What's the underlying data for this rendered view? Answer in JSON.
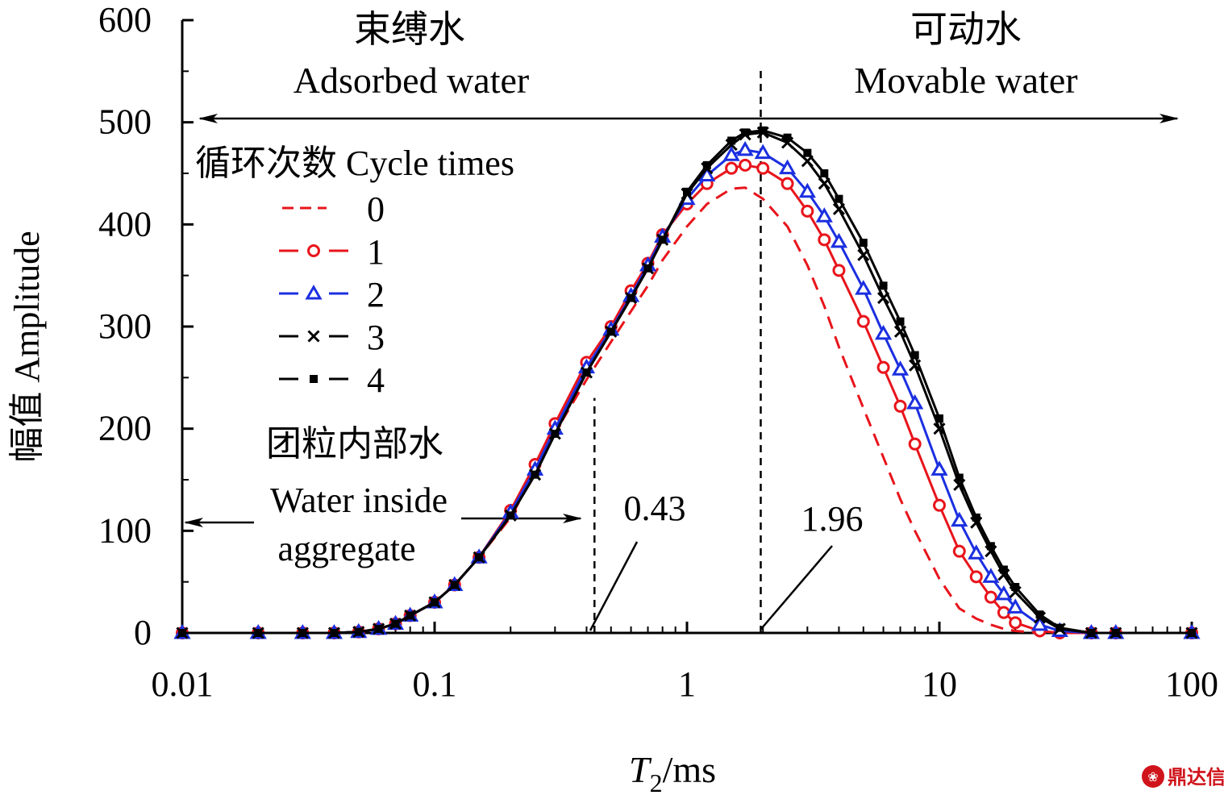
{
  "chart_data": {
    "type": "line",
    "xscale": "log",
    "xlim": [
      0.01,
      100
    ],
    "ylim": [
      0,
      600
    ],
    "xlabel_main": "T",
    "xlabel_sub": "2",
    "xlabel_unit": "/ms",
    "ylabel": "幅值 Amplitude",
    "xticks": [
      "0.01",
      "0.1",
      "1",
      "10",
      "100"
    ],
    "yticks": [
      "0",
      "100",
      "200",
      "300",
      "400",
      "500",
      "600"
    ],
    "legend_title": "循环次数 Cycle times",
    "legend_position": "upper-left",
    "series": [
      {
        "name": "0",
        "color": "#e8141b",
        "marker": "none",
        "dash": true,
        "x": [
          0.01,
          0.02,
          0.03,
          0.04,
          0.05,
          0.06,
          0.07,
          0.08,
          0.1,
          0.12,
          0.15,
          0.2,
          0.25,
          0.3,
          0.4,
          0.5,
          0.6,
          0.7,
          0.8,
          1.0,
          1.2,
          1.5,
          1.7,
          2.0,
          2.5,
          3.0,
          3.5,
          4.0,
          5.0,
          6.0,
          7.0,
          8.0,
          10,
          12,
          14,
          16,
          18,
          20,
          25,
          30,
          40,
          50,
          100
        ],
        "y": [
          0,
          0,
          0,
          0,
          1,
          4,
          9,
          17,
          30,
          47,
          74,
          113,
          157,
          196,
          248,
          285,
          315,
          340,
          365,
          398,
          420,
          435,
          436,
          425,
          398,
          360,
          320,
          280,
          220,
          172,
          131,
          100,
          53,
          24,
          14,
          8,
          4,
          2,
          0,
          0,
          0,
          0,
          0
        ]
      },
      {
        "name": "1",
        "color": "#e8141b",
        "marker": "circle",
        "dash": false,
        "x": [
          0.01,
          0.02,
          0.03,
          0.04,
          0.05,
          0.06,
          0.07,
          0.08,
          0.1,
          0.12,
          0.15,
          0.2,
          0.25,
          0.3,
          0.4,
          0.5,
          0.6,
          0.7,
          0.8,
          1.0,
          1.2,
          1.5,
          1.7,
          2.0,
          2.5,
          3.0,
          3.5,
          4.0,
          5.0,
          6.0,
          7.0,
          8.0,
          10,
          12,
          14,
          16,
          18,
          20,
          25,
          30,
          40,
          50,
          100
        ],
        "y": [
          0,
          0,
          0,
          0,
          1,
          4,
          9,
          17,
          30,
          47,
          74,
          120,
          165,
          205,
          265,
          300,
          335,
          362,
          390,
          420,
          440,
          455,
          458,
          455,
          440,
          413,
          385,
          355,
          305,
          260,
          222,
          185,
          125,
          80,
          55,
          35,
          20,
          10,
          2,
          0,
          0,
          0,
          0
        ]
      },
      {
        "name": "2",
        "color": "#1b2fe0",
        "marker": "triangle",
        "dash": false,
        "x": [
          0.01,
          0.02,
          0.03,
          0.04,
          0.05,
          0.06,
          0.07,
          0.08,
          0.1,
          0.12,
          0.15,
          0.2,
          0.25,
          0.3,
          0.4,
          0.5,
          0.6,
          0.7,
          0.8,
          1.0,
          1.2,
          1.5,
          1.7,
          2.0,
          2.5,
          3.0,
          3.5,
          4.0,
          5.0,
          6.0,
          7.0,
          8.0,
          10,
          12,
          14,
          16,
          18,
          20,
          25,
          30,
          40,
          50,
          100
        ],
        "y": [
          0,
          0,
          0,
          0,
          1,
          4,
          9,
          17,
          30,
          47,
          74,
          118,
          160,
          200,
          260,
          297,
          330,
          360,
          388,
          425,
          448,
          468,
          473,
          470,
          455,
          432,
          408,
          383,
          337,
          293,
          258,
          225,
          160,
          110,
          78,
          55,
          38,
          25,
          8,
          2,
          0,
          0,
          0
        ]
      },
      {
        "name": "3",
        "color": "#000000",
        "marker": "x",
        "dash": false,
        "x": [
          0.01,
          0.02,
          0.03,
          0.04,
          0.05,
          0.06,
          0.07,
          0.08,
          0.1,
          0.12,
          0.15,
          0.2,
          0.25,
          0.3,
          0.4,
          0.5,
          0.6,
          0.7,
          0.8,
          1.0,
          1.2,
          1.5,
          1.7,
          2.0,
          2.5,
          3.0,
          3.5,
          4.0,
          5.0,
          6.0,
          7.0,
          8.0,
          10,
          12,
          14,
          16,
          18,
          20,
          25,
          30,
          40,
          50,
          100
        ],
        "y": [
          0,
          0,
          0,
          0,
          1,
          4,
          9,
          17,
          30,
          47,
          74,
          115,
          155,
          195,
          255,
          295,
          328,
          357,
          385,
          430,
          455,
          478,
          488,
          490,
          480,
          462,
          440,
          415,
          370,
          328,
          295,
          262,
          200,
          145,
          108,
          80,
          57,
          40,
          15,
          4,
          0,
          0,
          0
        ]
      },
      {
        "name": "4",
        "color": "#000000",
        "marker": "square",
        "dash": false,
        "x": [
          0.01,
          0.02,
          0.03,
          0.04,
          0.05,
          0.06,
          0.07,
          0.08,
          0.1,
          0.12,
          0.15,
          0.2,
          0.25,
          0.3,
          0.4,
          0.5,
          0.6,
          0.7,
          0.8,
          1.0,
          1.2,
          1.5,
          1.7,
          2.0,
          2.5,
          3.0,
          3.5,
          4.0,
          5.0,
          6.0,
          7.0,
          8.0,
          10,
          12,
          14,
          16,
          18,
          20,
          25,
          30,
          40,
          50,
          100
        ],
        "y": [
          0,
          0,
          0,
          0,
          1,
          4,
          9,
          17,
          30,
          47,
          74,
          115,
          155,
          195,
          255,
          295,
          328,
          357,
          385,
          432,
          458,
          482,
          490,
          492,
          485,
          470,
          450,
          425,
          382,
          340,
          305,
          272,
          210,
          152,
          113,
          85,
          62,
          45,
          18,
          5,
          0,
          0,
          0
        ]
      }
    ],
    "vlines": [
      {
        "x": 0.43,
        "label": "0.43",
        "ymax": 230
      },
      {
        "x": 1.96,
        "label": "1.96",
        "ymax": 555
      }
    ],
    "annotations": {
      "adsorbed_cn": "束缚水",
      "adsorbed_en": "Adsorbed water",
      "movable_cn": "可动水",
      "movable_en": "Movable water",
      "inside_cn": "团粒内部水",
      "inside_en_1": "Water inside",
      "inside_en_2": "aggregate"
    },
    "watermark": "鼎达信"
  }
}
